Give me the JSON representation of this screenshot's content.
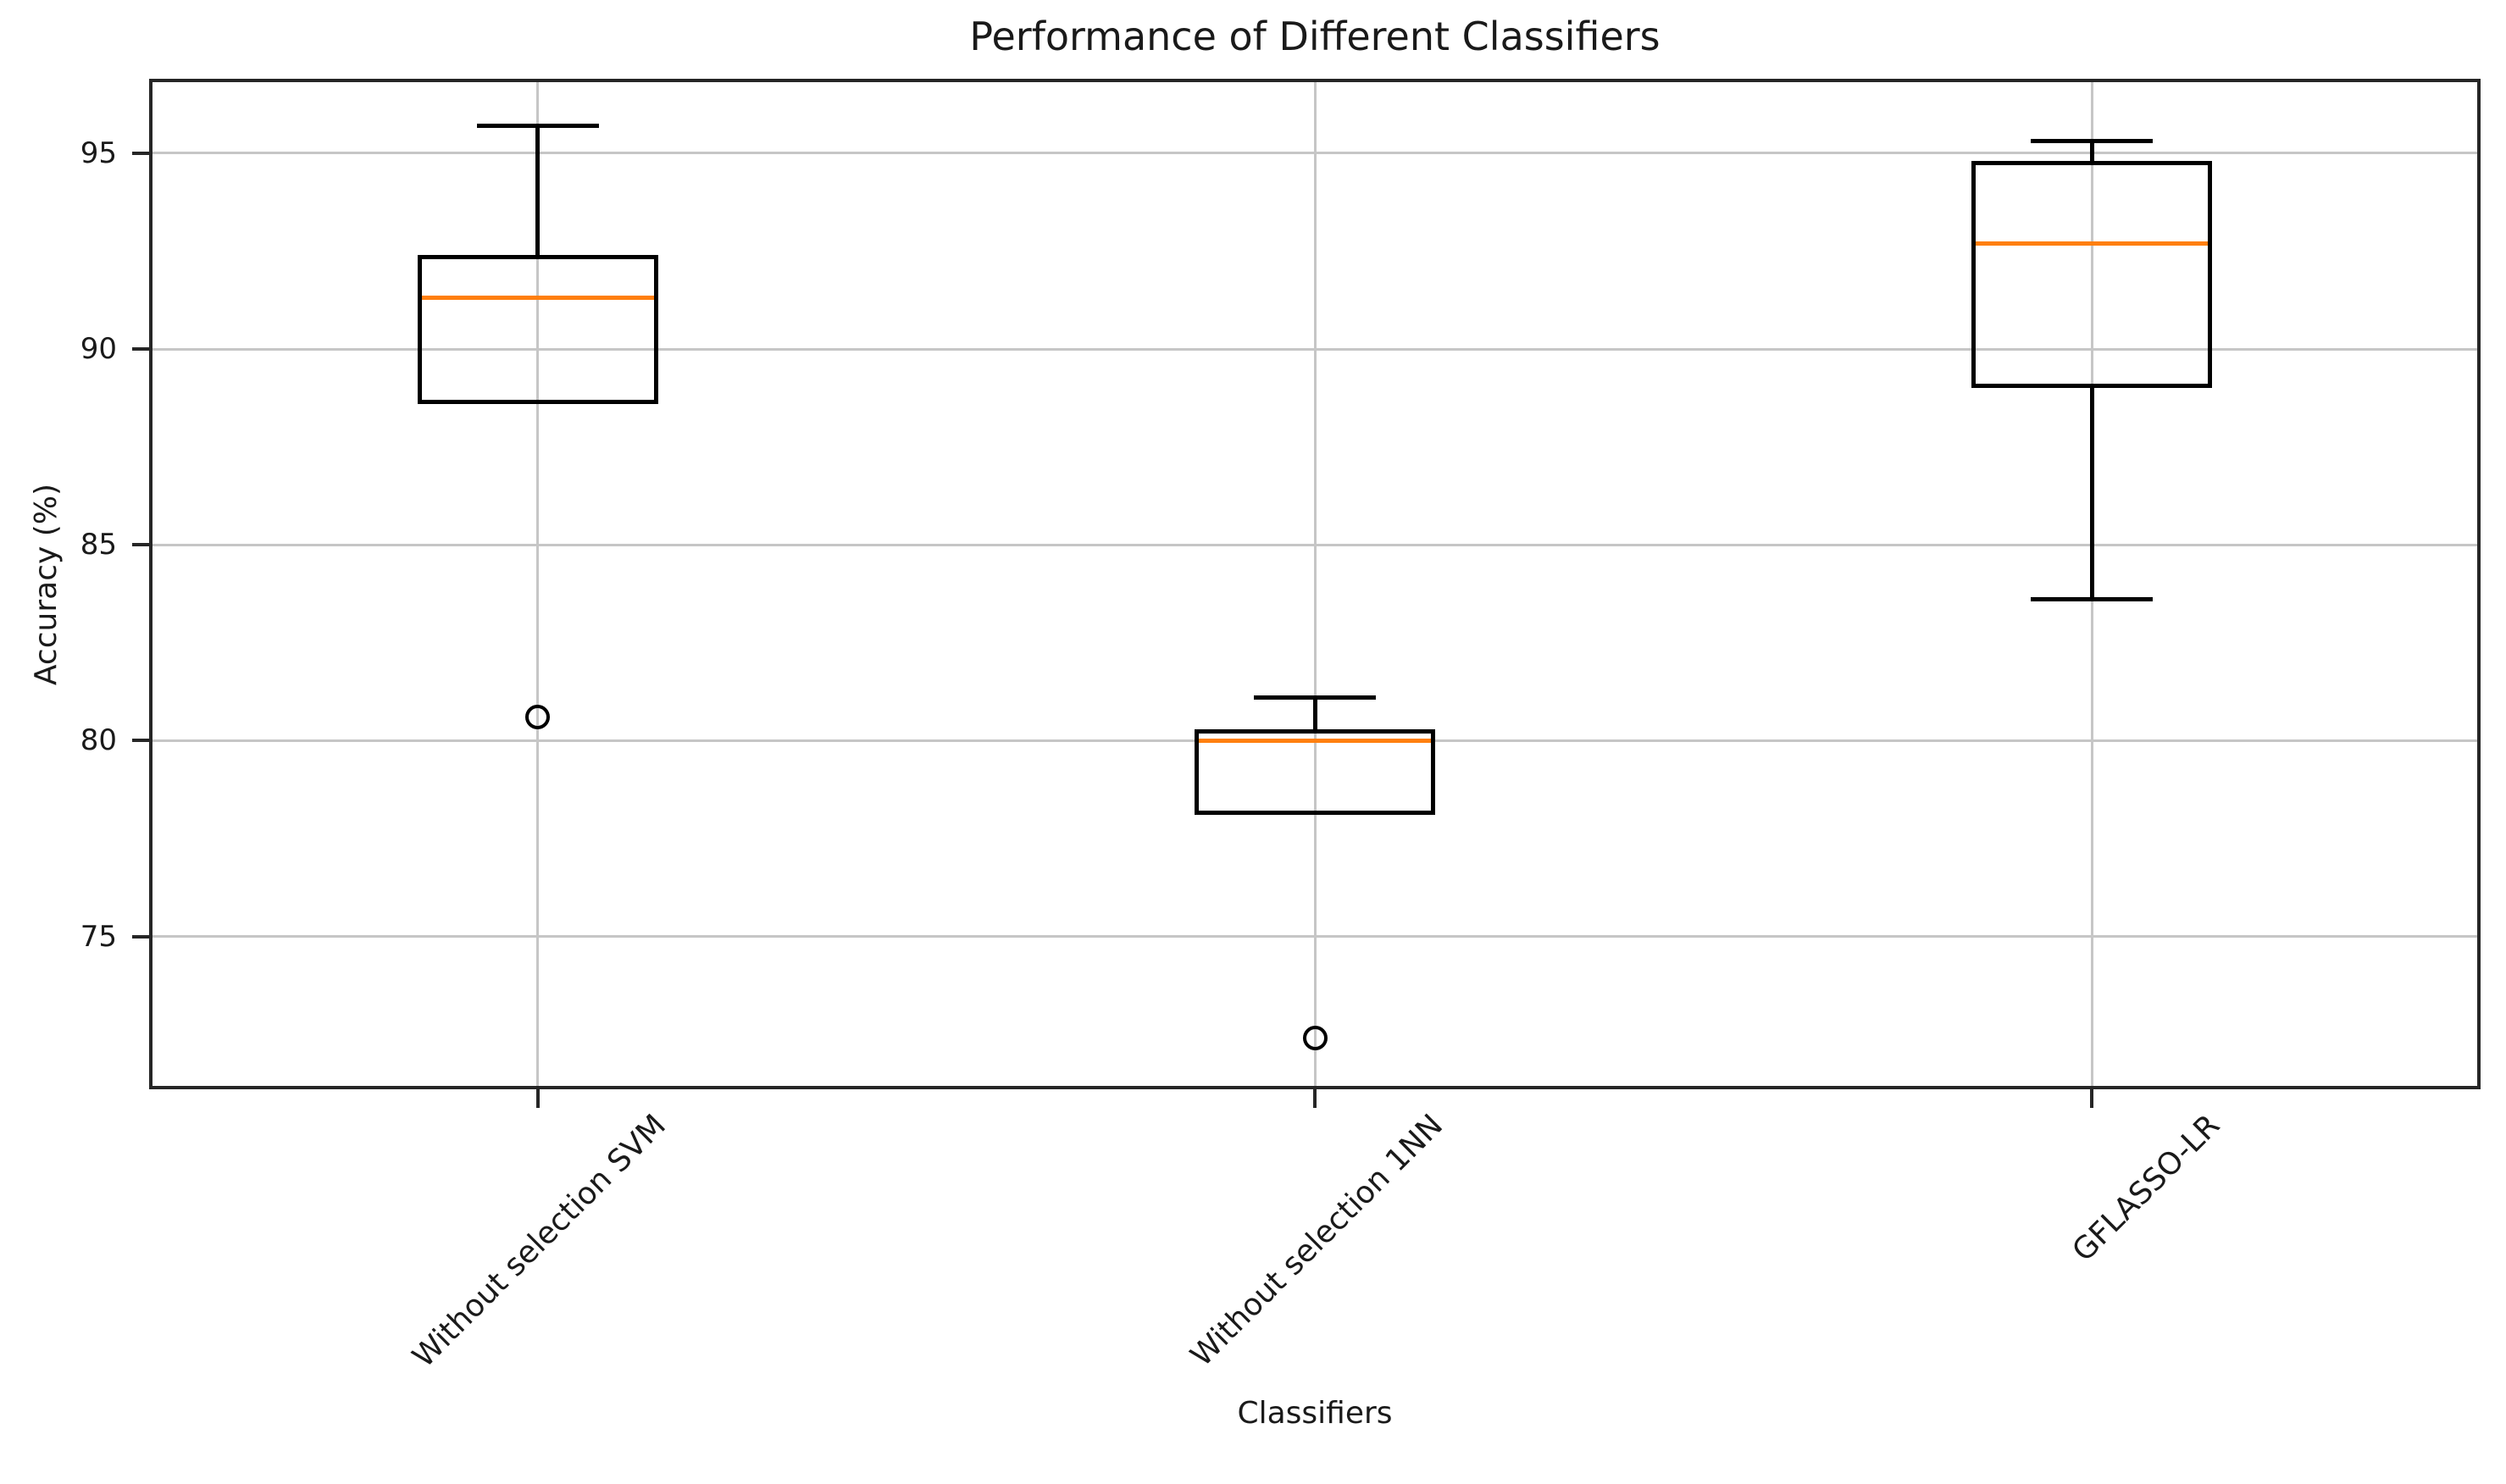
{
  "chart_data": {
    "type": "boxplot",
    "title": "Performance of Different Classifiers",
    "xlabel": "Classifiers",
    "ylabel": "Accuracy (%)",
    "categories": [
      "Without selection SVM",
      "Without selection 1NN",
      "GFLASSO-LR"
    ],
    "ylim": [
      71.1,
      96.9
    ],
    "yticks": [
      75,
      80,
      85,
      90,
      95
    ],
    "grid": true,
    "legend": false,
    "colors": {
      "median": "#ff7f0e",
      "box_line": "#000000",
      "grid": "#c6c6c6",
      "spine": "#262626",
      "text": "#1a1a1a",
      "background": "#ffffff"
    },
    "series": [
      {
        "label": "Without selection SVM",
        "whislo": 88.6,
        "q1": 88.6,
        "med": 91.3,
        "q3": 92.4,
        "whishi": 95.7,
        "fliers": [
          80.6
        ]
      },
      {
        "label": "Without selection 1NN",
        "whislo": 78.1,
        "q1": 78.1,
        "med": 80.0,
        "q3": 80.3,
        "whishi": 81.1,
        "fliers": [
          72.4
        ]
      },
      {
        "label": "GFLASSO-LR",
        "whislo": 83.6,
        "q1": 89.0,
        "med": 92.7,
        "q3": 94.8,
        "whishi": 95.3,
        "fliers": []
      }
    ]
  }
}
